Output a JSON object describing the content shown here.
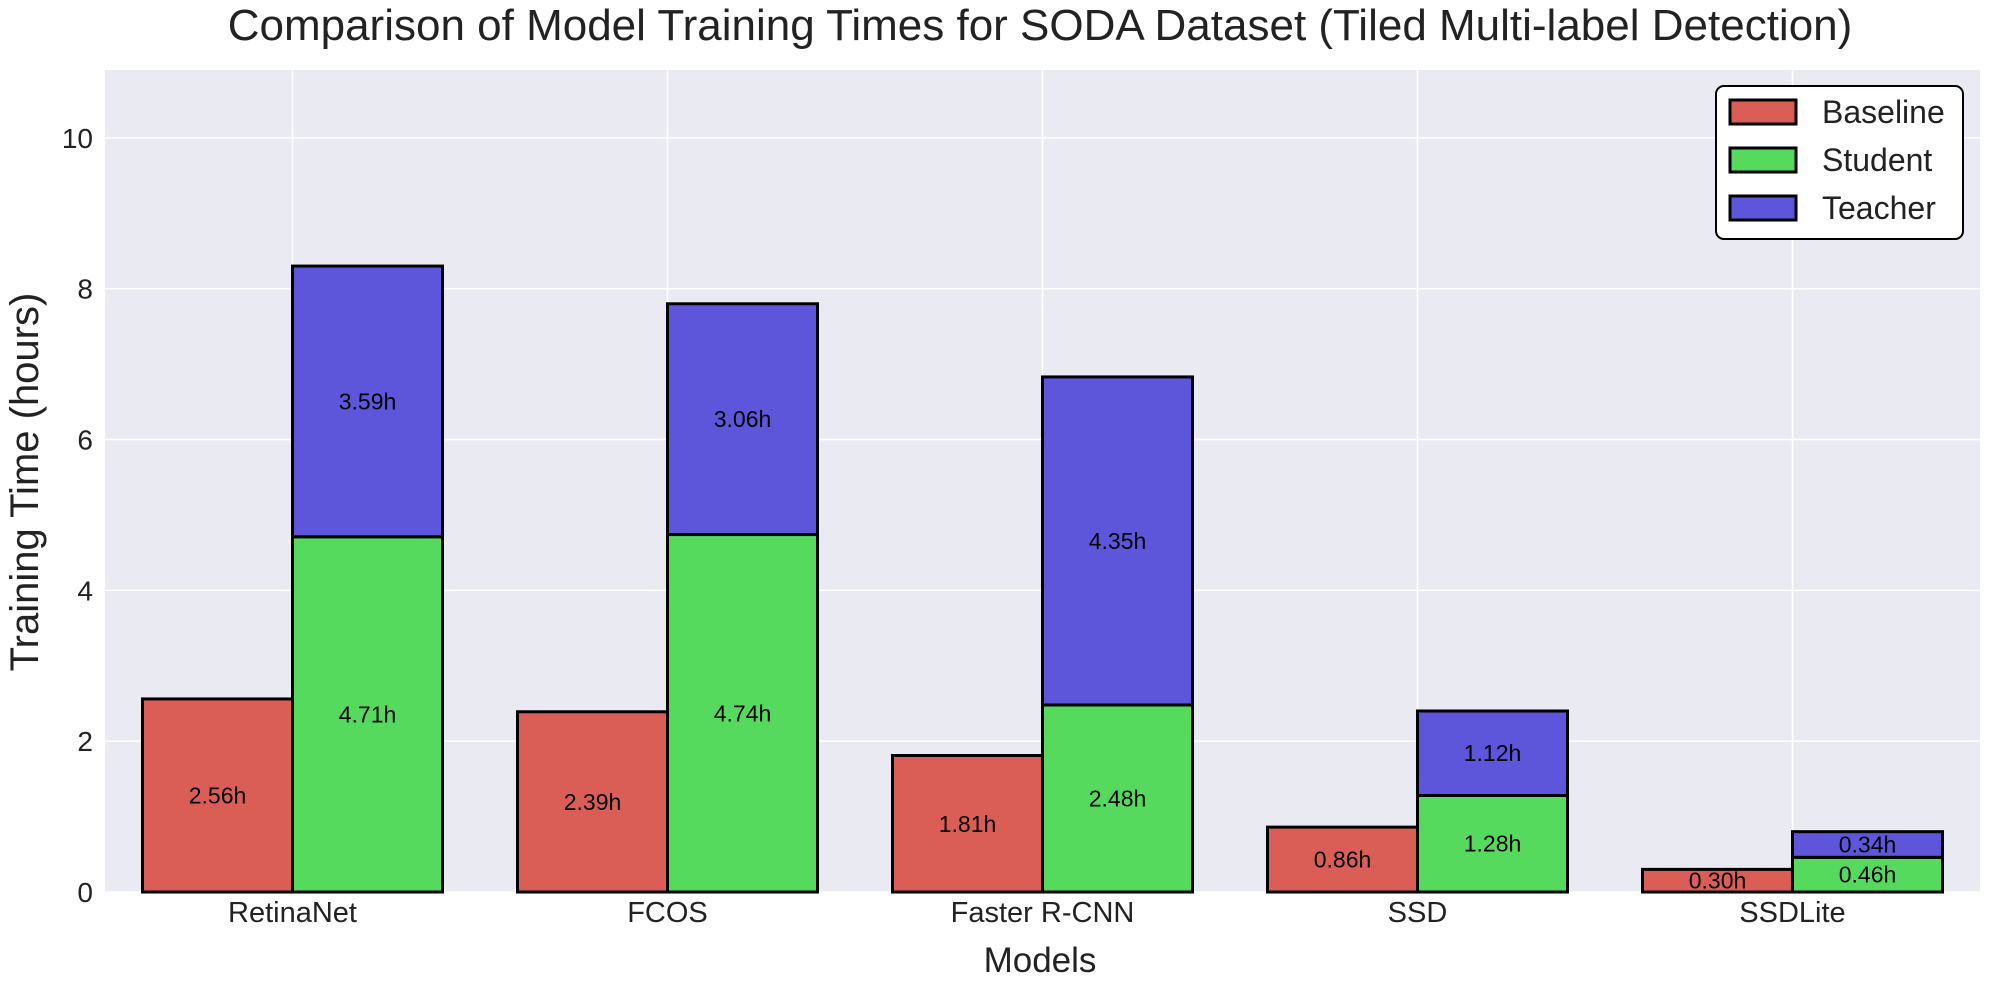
{
  "chart_data": {
    "type": "bar",
    "title": "Comparison of Model Training Times for SODA Dataset (Tiled Multi-label Detection)",
    "xlabel": "Models",
    "ylabel": "Training Time (hours)",
    "ylim": [
      0,
      10.9
    ],
    "yticks": [
      "0",
      "2",
      "4",
      "6",
      "8",
      "10"
    ],
    "grid": true,
    "legend_position": "top-right",
    "categories": [
      "RetinaNet",
      "FCOS",
      "Faster R-CNN",
      "SSD",
      "SSDLite"
    ],
    "series": [
      {
        "name": "Baseline",
        "color": "#da5e56",
        "values": [
          2.56,
          2.39,
          1.81,
          0.86,
          0.3
        ],
        "labels": [
          "2.56h",
          "2.39h",
          "1.81h",
          "0.86h",
          "0.30h"
        ]
      },
      {
        "name": "Student",
        "color": "#56da5e",
        "values": [
          4.71,
          4.74,
          2.48,
          1.28,
          0.46
        ],
        "labels": [
          "4.71h",
          "4.74h",
          "2.48h",
          "1.28h",
          "0.46h"
        ]
      },
      {
        "name": "Teacher",
        "color": "#5e56da",
        "stacked_on": "Student",
        "values": [
          3.59,
          3.06,
          4.35,
          1.12,
          0.34
        ],
        "labels": [
          "3.59h",
          "3.06h",
          "4.35h",
          "1.12h",
          "0.34h"
        ]
      }
    ],
    "colors": {
      "background": "#eaeaf2",
      "grid": "#ffffff",
      "edge": "#000000"
    }
  }
}
